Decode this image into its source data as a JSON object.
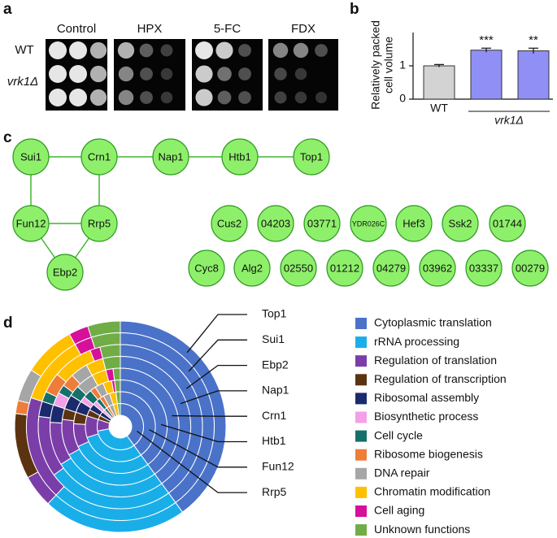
{
  "panel_labels": [
    "a",
    "b",
    "c",
    "d"
  ],
  "panel_a": {
    "columns": [
      "Control",
      "HPX",
      "5-FC",
      "FDX"
    ],
    "rows": [
      "WT",
      "vrk1Δ"
    ]
  },
  "network": {
    "nodes": [
      "Sui1",
      "Crn1",
      "Nap1",
      "Htb1",
      "Top1",
      "Fun12",
      "Rrp5",
      "Ebp2",
      "Cus2",
      "04203",
      "03771",
      "YDR026C",
      "Hef3",
      "Ssk2",
      "01744",
      "Cyc8",
      "Alg2",
      "02550",
      "01212",
      "04279",
      "03962",
      "03337",
      "00279"
    ]
  },
  "chart_data": [
    {
      "type": "bar",
      "ylabel": [
        "Relatively packed",
        "cell volume"
      ],
      "categories": [
        "WT",
        null,
        null
      ],
      "group_label": "vrk1Δ",
      "values": [
        1.0,
        1.47,
        1.45
      ],
      "errors": [
        0.04,
        0.06,
        0.08
      ],
      "significance": [
        null,
        "***",
        "**"
      ],
      "colors": [
        "#d3d3d3",
        "#8f8ff5",
        "#8f8ff5"
      ],
      "ylim": [
        0,
        2
      ],
      "yticks": [
        0,
        1
      ]
    },
    {
      "type": "ring",
      "categories": [
        "Cytoplasmic translation",
        "rRNA processing",
        "Regulation of translation",
        "Regulation of transcription",
        "Ribosomal assembly",
        "Biosynthetic process",
        "Cell cycle",
        "Ribosome biogenesis",
        "DNA repair",
        "Chromatin modification",
        "Cell aging",
        "Unknown functions"
      ],
      "colors": [
        "#4a72c9",
        "#1aaee8",
        "#7b3ea8",
        "#5c3310",
        "#1a2a6c",
        "#f3a0e8",
        "#16706a",
        "#ee7d3a",
        "#a6a6a6",
        "#ffc000",
        "#d6109a",
        "#70ad47"
      ],
      "series": [
        {
          "name": "Top1",
          "values": [
            40,
            22,
            5,
            10,
            0,
            0,
            0,
            2,
            5,
            8,
            3,
            5
          ]
        },
        {
          "name": "Sui1",
          "values": [
            40,
            22,
            18,
            0,
            0,
            0,
            0,
            0,
            0,
            12,
            3,
            5
          ]
        },
        {
          "name": "Ebp2",
          "values": [
            40,
            25,
            12,
            0,
            3,
            0,
            2,
            4,
            0,
            8,
            2,
            4
          ]
        },
        {
          "name": "Nap1",
          "values": [
            40,
            26,
            10,
            0,
            4,
            3,
            2,
            3,
            4,
            4,
            0,
            4
          ]
        },
        {
          "name": "Crn1",
          "values": [
            40,
            27,
            10,
            3,
            4,
            0,
            3,
            0,
            5,
            4,
            2,
            2
          ]
        },
        {
          "name": "Htb1",
          "values": [
            40,
            28,
            8,
            4,
            4,
            2,
            3,
            2,
            3,
            3,
            1,
            2
          ]
        },
        {
          "name": "Fun12",
          "values": [
            40,
            30,
            10,
            3,
            3,
            2,
            2,
            2,
            3,
            3,
            0,
            2
          ]
        },
        {
          "name": "Rrp5",
          "values": [
            40,
            32,
            8,
            3,
            3,
            2,
            2,
            2,
            3,
            3,
            0,
            2
          ]
        }
      ]
    }
  ]
}
